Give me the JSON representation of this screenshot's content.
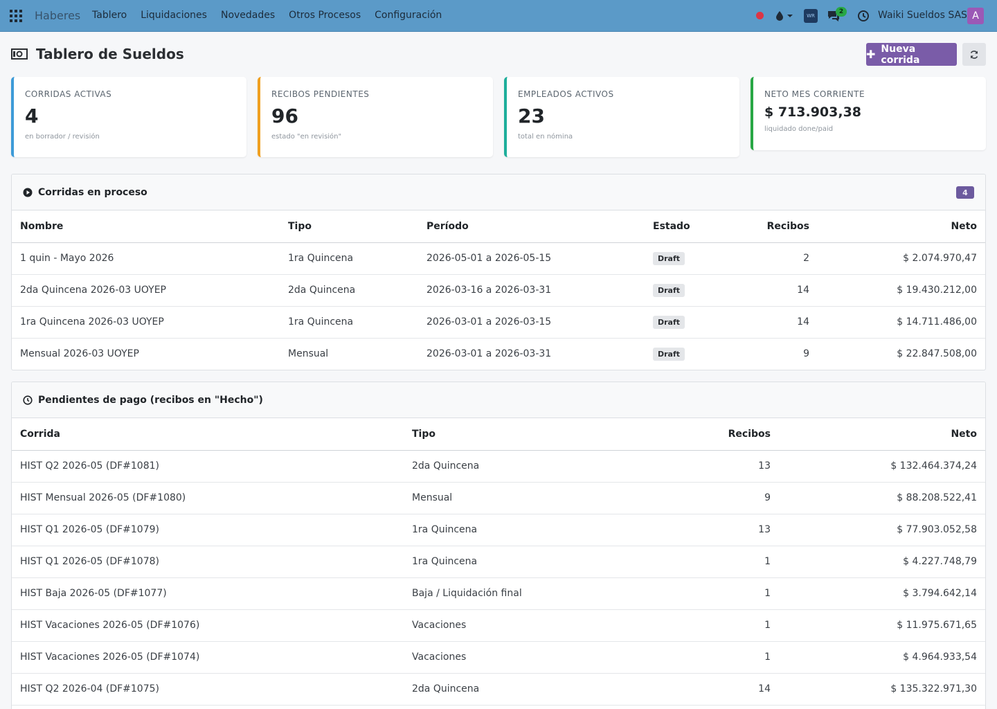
{
  "navbar": {
    "brand": "Haberes",
    "menu": [
      "Tablero",
      "Liquidaciones",
      "Novedades",
      "Otros Procesos",
      "Configuración"
    ],
    "app_badge": "WR",
    "chat_count": "2",
    "company": "Waiki Sueldos SAS",
    "avatar_letter": "A",
    "icons": [
      "apps-grid-icon",
      "recording-dot-icon",
      "drop-icon",
      "chat-icon",
      "clock-icon"
    ]
  },
  "page": {
    "title": "Tablero de Sueldos",
    "new_button": "Nueva corrida"
  },
  "kpis": [
    {
      "label": "Corridas activas",
      "value": "4",
      "sub": "en borrador / revisión",
      "color": "#3d9bd8"
    },
    {
      "label": "Recibos pendientes",
      "value": "96",
      "sub": "estado \"en revisión\"",
      "color": "#f0a020"
    },
    {
      "label": "Empleados activos",
      "value": "23",
      "sub": "total en nómina",
      "color": "#1eae9b"
    },
    {
      "label": "Neto mes corriente",
      "value": "$ 713.903,38",
      "sub": "liquidado done/paid",
      "color": "#28a745"
    }
  ],
  "in_process": {
    "title": "Corridas en proceso",
    "count": "4",
    "headers": [
      "Nombre",
      "Tipo",
      "Período",
      "Estado",
      "Recibos",
      "Neto"
    ],
    "rows": [
      {
        "nombre": "1 quin - Mayo 2026",
        "tipo": "1ra Quincena",
        "periodo": "2026-05-01 a 2026-05-15",
        "estado": "Draft",
        "recibos": "2",
        "neto": "$ 2.074.970,47"
      },
      {
        "nombre": "2da Quincena 2026-03 UOYEP",
        "tipo": "2da Quincena",
        "periodo": "2026-03-16 a 2026-03-31",
        "estado": "Draft",
        "recibos": "14",
        "neto": "$ 19.430.212,00"
      },
      {
        "nombre": "1ra Quincena 2026-03 UOYEP",
        "tipo": "1ra Quincena",
        "periodo": "2026-03-01 a 2026-03-15",
        "estado": "Draft",
        "recibos": "14",
        "neto": "$ 14.711.486,00"
      },
      {
        "nombre": "Mensual 2026-03 UOYEP",
        "tipo": "Mensual",
        "periodo": "2026-03-01 a 2026-03-31",
        "estado": "Draft",
        "recibos": "9",
        "neto": "$ 22.847.508,00"
      }
    ]
  },
  "pending": {
    "title": "Pendientes de pago (recibos en \"Hecho\")",
    "headers": [
      "Corrida",
      "Tipo",
      "Recibos",
      "Neto"
    ],
    "rows": [
      {
        "corrida": "HIST Q2 2026-05 (DF#1081)",
        "tipo": "2da Quincena",
        "recibos": "13",
        "neto": "$ 132.464.374,24"
      },
      {
        "corrida": "HIST Mensual 2026-05 (DF#1080)",
        "tipo": "Mensual",
        "recibos": "9",
        "neto": "$ 88.208.522,41"
      },
      {
        "corrida": "HIST Q1 2026-05 (DF#1079)",
        "tipo": "1ra Quincena",
        "recibos": "13",
        "neto": "$ 77.903.052,58"
      },
      {
        "corrida": "HIST Q1 2026-05 (DF#1078)",
        "tipo": "1ra Quincena",
        "recibos": "1",
        "neto": "$ 4.227.748,79"
      },
      {
        "corrida": "HIST Baja 2026-05 (DF#1077)",
        "tipo": "Baja / Liquidación final",
        "recibos": "1",
        "neto": "$ 3.794.642,14"
      },
      {
        "corrida": "HIST Vacaciones 2026-05 (DF#1076)",
        "tipo": "Vacaciones",
        "recibos": "1",
        "neto": "$ 11.975.671,65"
      },
      {
        "corrida": "HIST Vacaciones 2026-05 (DF#1074)",
        "tipo": "Vacaciones",
        "recibos": "1",
        "neto": "$ 4.964.933,54"
      },
      {
        "corrida": "HIST Q2 2026-04 (DF#1075)",
        "tipo": "2da Quincena",
        "recibos": "14",
        "neto": "$ 135.322.971,30"
      }
    ]
  }
}
